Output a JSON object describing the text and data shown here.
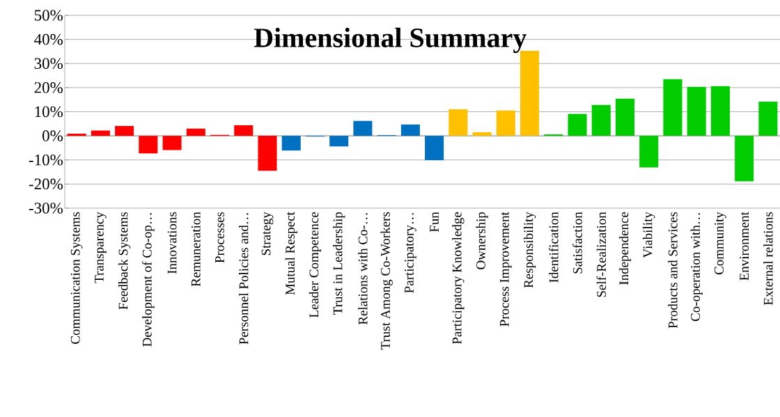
{
  "chart_data": {
    "type": "bar",
    "title": "Dimensional Summary",
    "categories": [
      "Communication Systems",
      "Transparency",
      "Feedback Systems",
      "Development of Co-op…",
      "Innovations",
      "Remuneration",
      "Processes",
      "Personnel Policies and…",
      "Strategy",
      "Mutual Respect",
      "Leader Competence",
      "Trust in Leadership",
      "Relations with Co-…",
      "Trust Among Co-Workers",
      "Participatory…",
      "Fun",
      "Participatory Knowledge",
      "Ownership",
      "Process Improvement",
      "Responsibility",
      "Identification",
      "Satisfaction",
      "Self-Realization",
      "Independence",
      "Viability",
      "Products and Services",
      "Co-operation with…",
      "Community",
      "Environment",
      "External relations"
    ],
    "values": [
      0.9,
      2.2,
      4.1,
      -7.3,
      -5.9,
      3.0,
      0.4,
      4.4,
      -14.5,
      -6.1,
      -0.3,
      -4.4,
      6.2,
      0.3,
      4.7,
      -10.1,
      11.0,
      1.5,
      10.5,
      35.3,
      0.6,
      9.1,
      12.8,
      15.4,
      -13.1,
      23.5,
      20.3,
      20.6,
      -18.9,
      14.2
    ],
    "colors": [
      "#ff0000",
      "#ff0000",
      "#ff0000",
      "#ff0000",
      "#ff0000",
      "#ff0000",
      "#ff0000",
      "#ff0000",
      "#ff0000",
      "#0070c0",
      "#0070c0",
      "#0070c0",
      "#0070c0",
      "#0070c0",
      "#0070c0",
      "#0070c0",
      "#ffc000",
      "#ffc000",
      "#ffc000",
      "#ffc000",
      "#00cc00",
      "#00cc00",
      "#00cc00",
      "#00cc00",
      "#00cc00",
      "#00cc00",
      "#00cc00",
      "#00cc00",
      "#00cc00",
      "#00cc00"
    ],
    "ylim": [
      -30,
      50
    ],
    "yticks": [
      {
        "value": -30,
        "label": "-30%"
      },
      {
        "value": -20,
        "label": "-20%"
      },
      {
        "value": -10,
        "label": "-10%"
      },
      {
        "value": 0,
        "label": "0%"
      },
      {
        "value": 10,
        "label": "10%"
      },
      {
        "value": 20,
        "label": "20%"
      },
      {
        "value": 30,
        "label": "30%"
      },
      {
        "value": 40,
        "label": "40%"
      },
      {
        "value": 50,
        "label": "50%"
      }
    ],
    "grid": "y"
  }
}
